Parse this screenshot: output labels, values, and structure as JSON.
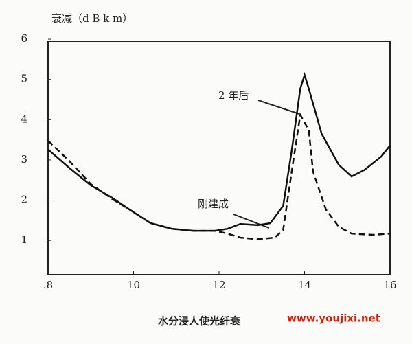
{
  "chart_data": {
    "type": "line",
    "y_label": "衰减（d B  k m）",
    "caption": "水分浸人使光纤衰",
    "watermark": "www.youjixi.net",
    "annotations": [
      "2 年后",
      "刚建成"
    ],
    "series": [
      {
        "name": "2 年后",
        "color": "#111111",
        "dash": "solid",
        "x": [
          0.8,
          0.85,
          0.9,
          0.95,
          0.99,
          1.04,
          1.09,
          1.14,
          1.19,
          1.22,
          1.25,
          1.29,
          1.32,
          1.35,
          1.37,
          1.39,
          1.4,
          1.41,
          1.44,
          1.48,
          1.51,
          1.54,
          1.58,
          1.6
        ],
        "values": [
          3.26,
          2.8,
          2.37,
          2.06,
          1.77,
          1.43,
          1.29,
          1.24,
          1.24,
          1.29,
          1.41,
          1.38,
          1.43,
          1.86,
          3.23,
          4.77,
          5.11,
          4.77,
          3.65,
          2.88,
          2.59,
          2.75,
          3.09,
          3.36
        ]
      },
      {
        "name": "刚建成",
        "color": "#111111",
        "dash": "dashed",
        "x": [
          0.8,
          0.85,
          0.9,
          0.95,
          0.99,
          1.04,
          1.09,
          1.14,
          1.19,
          1.22,
          1.25,
          1.29,
          1.33,
          1.35,
          1.37,
          1.39,
          1.41,
          1.42,
          1.45,
          1.48,
          1.51,
          1.56,
          1.6
        ],
        "values": [
          3.48,
          2.97,
          2.4,
          2.03,
          1.77,
          1.43,
          1.29,
          1.24,
          1.24,
          1.17,
          1.07,
          1.03,
          1.07,
          1.26,
          2.71,
          4.12,
          3.74,
          2.71,
          1.77,
          1.34,
          1.17,
          1.14,
          1.17
        ]
      }
    ],
    "xlim": [
      0.8,
      1.6
    ],
    "xticks": [
      {
        "value": 0.8,
        "label": ".8"
      },
      {
        "value": 1.0,
        "label": "10"
      },
      {
        "value": 1.2,
        "label": "12"
      },
      {
        "value": 1.4,
        "label": "14"
      },
      {
        "value": 1.6,
        "label": "16"
      }
    ],
    "ylim": [
      0.15,
      5.95
    ],
    "yticks": [
      1,
      2,
      3,
      4,
      5,
      6
    ],
    "grid": false
  }
}
